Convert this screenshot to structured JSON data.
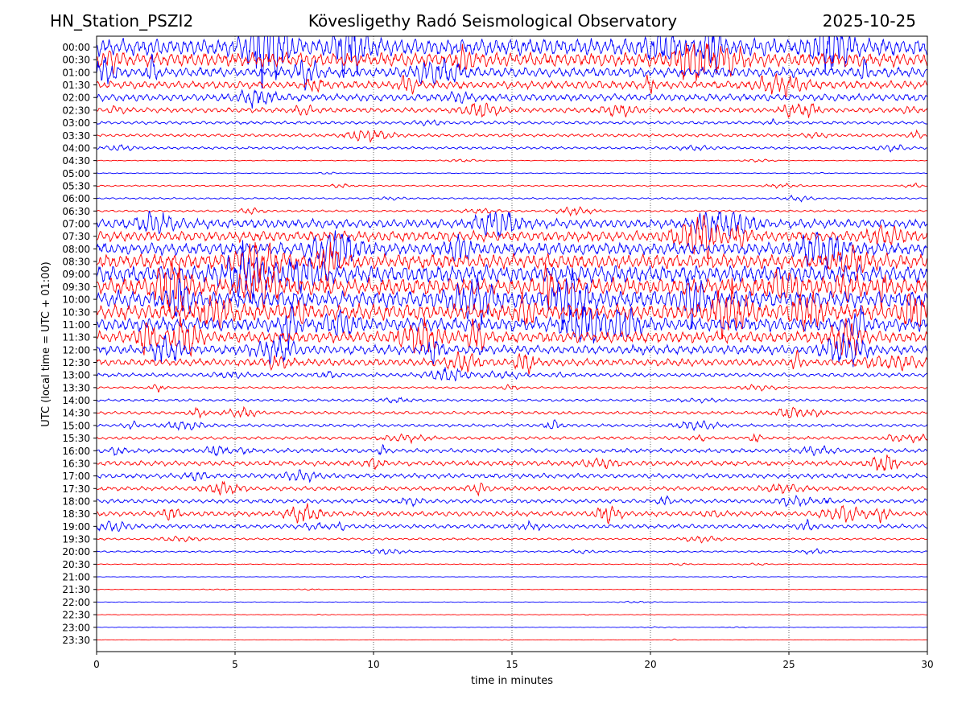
{
  "header": {
    "station": "HN_Station_PSZI2",
    "observatory": "Kövesligethy Radó Seismological Observatory",
    "date": "2025-10-25"
  },
  "chart_data": {
    "type": "line",
    "title": "Kövesligethy Radó Seismological Observatory",
    "xlabel": "time in minutes",
    "ylabel": "UTC (local time = UTC + 01:00)",
    "xlim": [
      0,
      30
    ],
    "x_ticks": [
      "0",
      "5",
      "10",
      "15",
      "20",
      "25",
      "30"
    ],
    "grid": "vertical dotted lines at 5-minute intervals",
    "series_colors": [
      "#0000ff",
      "#ff0000"
    ],
    "rows": [
      "00:00",
      "00:30",
      "01:00",
      "01:30",
      "02:00",
      "02:30",
      "03:00",
      "03:30",
      "04:00",
      "04:30",
      "05:00",
      "05:30",
      "06:00",
      "06:30",
      "07:00",
      "07:30",
      "08:00",
      "08:30",
      "09:00",
      "09:30",
      "10:00",
      "10:30",
      "11:00",
      "11:30",
      "12:00",
      "12:30",
      "13:00",
      "13:30",
      "14:00",
      "14:30",
      "15:00",
      "15:30",
      "16:00",
      "16:30",
      "17:00",
      "17:30",
      "18:00",
      "18:30",
      "19:00",
      "19:30",
      "20:00",
      "20:30",
      "21:00",
      "21:30",
      "22:00",
      "22:30",
      "23:00",
      "23:30"
    ],
    "relative_amplitude": [
      3.0,
      2.4,
      1.7,
      1.4,
      1.3,
      0.9,
      0.55,
      0.55,
      0.45,
      0.15,
      0.15,
      0.25,
      0.3,
      0.35,
      1.6,
      1.8,
      2.2,
      2.6,
      3.0,
      3.0,
      3.0,
      2.8,
      2.4,
      2.0,
      1.6,
      1.3,
      0.7,
      0.35,
      0.45,
      0.55,
      0.55,
      0.55,
      0.75,
      0.9,
      0.85,
      0.75,
      0.75,
      0.9,
      0.75,
      0.35,
      0.3,
      0.15,
      0.1,
      0.1,
      0.1,
      0.1,
      0.08,
      0.08
    ]
  }
}
